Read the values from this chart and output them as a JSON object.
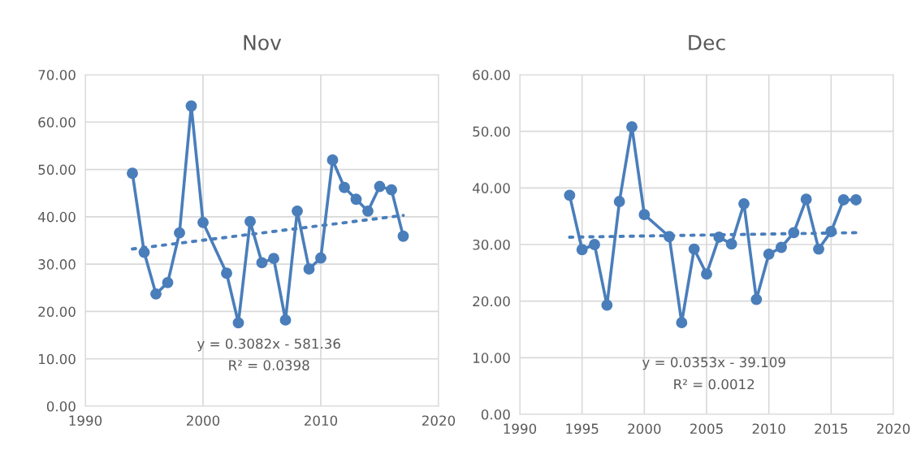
{
  "chart_data": [
    {
      "type": "line",
      "title": "Nov",
      "x": [
        1994,
        1995,
        1996,
        1997,
        1998,
        1999,
        2000,
        2002,
        2003,
        2004,
        2005,
        2006,
        2007,
        2008,
        2009,
        2010,
        2011,
        2012,
        2013,
        2014,
        2015,
        2016,
        2017
      ],
      "series": [
        {
          "color": "#4a7ebb",
          "marker": "circle",
          "line_style": "solid",
          "values": [
            49.2,
            32.5,
            23.7,
            26.1,
            36.6,
            63.4,
            38.8,
            28.1,
            17.6,
            39.0,
            30.3,
            31.2,
            18.2,
            41.2,
            29.0,
            31.3,
            52.0,
            46.2,
            43.7,
            41.2,
            46.4,
            45.7,
            35.9
          ]
        },
        {
          "type": "line",
          "color": "#4a7ebb",
          "marker": "none",
          "line_style": "dotted",
          "values": [
            33.2,
            null,
            null,
            null,
            null,
            null,
            null,
            null,
            null,
            null,
            null,
            null,
            null,
            null,
            null,
            null,
            null,
            null,
            null,
            null,
            null,
            null,
            40.3
          ]
        }
      ],
      "xlim": [
        1990,
        2020
      ],
      "xticks": [
        1990,
        2000,
        2010,
        2020
      ],
      "ylim": [
        0,
        70
      ],
      "yticks": [
        {
          "value": 0,
          "label": "0.00"
        },
        {
          "value": 10,
          "label": "10.00"
        },
        {
          "value": 20,
          "label": "20.00"
        },
        {
          "value": 30,
          "label": "30.00"
        },
        {
          "value": 40,
          "label": "40.00"
        },
        {
          "value": 50,
          "label": "50.00"
        },
        {
          "value": 60,
          "label": "60.00"
        },
        {
          "value": 70,
          "label": "70.00"
        }
      ],
      "grid": true,
      "legend": false,
      "annotations": [
        "y = 0.3082x - 581.36",
        "R² = 0.0398"
      ]
    },
    {
      "type": "line",
      "title": "Dec",
      "x": [
        1994,
        1995,
        1996,
        1997,
        1998,
        1999,
        2000,
        2002,
        2003,
        2004,
        2005,
        2006,
        2007,
        2008,
        2009,
        2010,
        2011,
        2012,
        2013,
        2014,
        2015,
        2016,
        2017
      ],
      "series": [
        {
          "color": "#4a7ebb",
          "marker": "circle",
          "line_style": "solid",
          "values": [
            38.7,
            29.1,
            30.0,
            19.3,
            37.6,
            50.8,
            35.3,
            31.4,
            16.2,
            29.2,
            24.8,
            31.3,
            30.1,
            37.2,
            20.3,
            28.3,
            29.5,
            32.1,
            38.0,
            29.2,
            32.3,
            37.9,
            37.9
          ]
        },
        {
          "type": "line",
          "color": "#4a7ebb",
          "marker": "none",
          "line_style": "dotted",
          "values": [
            31.3,
            null,
            null,
            null,
            null,
            null,
            null,
            null,
            null,
            null,
            null,
            null,
            null,
            null,
            null,
            null,
            null,
            null,
            null,
            null,
            null,
            null,
            32.1
          ]
        }
      ],
      "xlim": [
        1990,
        2020
      ],
      "xticks": [
        1990,
        1995,
        2000,
        2005,
        2010,
        2015,
        2020
      ],
      "ylim": [
        0,
        60
      ],
      "yticks": [
        {
          "value": 0,
          "label": "0.00"
        },
        {
          "value": 10,
          "label": "10.00"
        },
        {
          "value": 20,
          "label": "20.00"
        },
        {
          "value": 30,
          "label": "30.00"
        },
        {
          "value": 40,
          "label": "40.00"
        },
        {
          "value": 50,
          "label": "50.00"
        },
        {
          "value": 60,
          "label": "60.00"
        }
      ],
      "grid": true,
      "legend": false,
      "annotations": [
        "y = 0.0353x - 39.109",
        "R² = 0.0012"
      ]
    }
  ]
}
